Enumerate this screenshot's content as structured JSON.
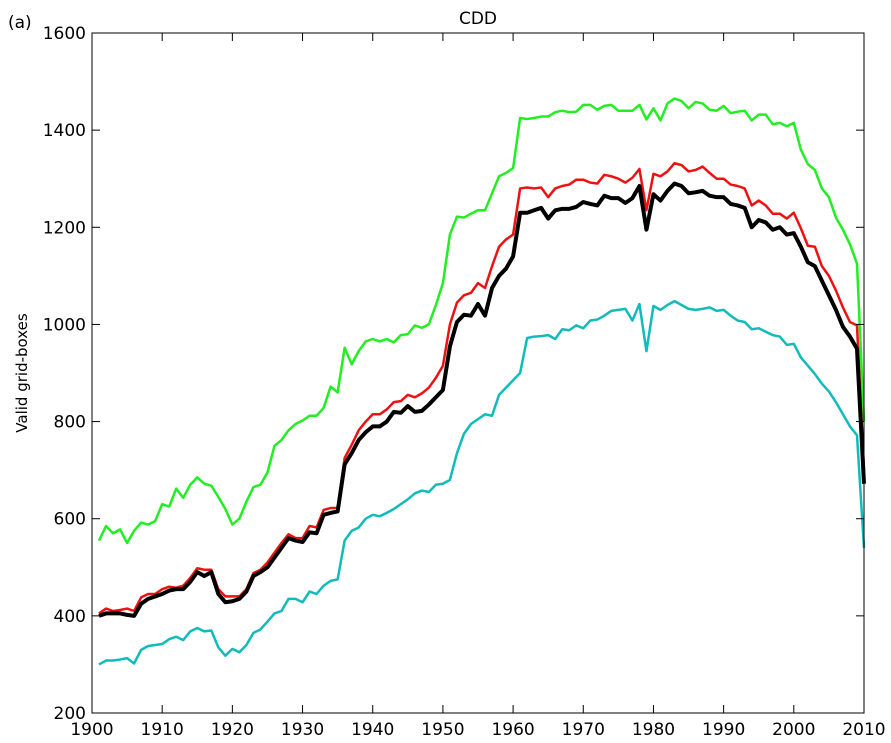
{
  "chart_data": {
    "type": "line",
    "panel_label": "(a)",
    "title": "CDD",
    "y_label": "Valid grid-boxes",
    "x": [
      1901,
      1902,
      1903,
      1904,
      1905,
      1906,
      1907,
      1908,
      1909,
      1910,
      1911,
      1912,
      1913,
      1914,
      1915,
      1916,
      1917,
      1918,
      1919,
      1920,
      1921,
      1922,
      1923,
      1924,
      1925,
      1926,
      1927,
      1928,
      1929,
      1930,
      1931,
      1932,
      1933,
      1934,
      1935,
      1936,
      1937,
      1938,
      1939,
      1940,
      1941,
      1942,
      1943,
      1944,
      1945,
      1946,
      1947,
      1948,
      1949,
      1950,
      1951,
      1952,
      1953,
      1954,
      1955,
      1956,
      1957,
      1958,
      1959,
      1960,
      1961,
      1962,
      1963,
      1964,
      1965,
      1966,
      1967,
      1968,
      1969,
      1970,
      1971,
      1972,
      1973,
      1974,
      1975,
      1976,
      1977,
      1978,
      1979,
      1980,
      1981,
      1982,
      1983,
      1984,
      1985,
      1986,
      1987,
      1988,
      1989,
      1990,
      1991,
      1992,
      1993,
      1994,
      1995,
      1996,
      1997,
      1998,
      1999,
      2000,
      2001,
      2002,
      2003,
      2004,
      2005,
      2006,
      2007,
      2008,
      2009,
      2010
    ],
    "series": [
      {
        "color": "#22ee22",
        "width": 2.5,
        "values": [
          555,
          585,
          570,
          578,
          550,
          575,
          592,
          588,
          595,
          630,
          625,
          662,
          643,
          670,
          685,
          672,
          668,
          645,
          620,
          588,
          600,
          635,
          665,
          670,
          695,
          750,
          762,
          782,
          795,
          802,
          812,
          812,
          828,
          872,
          860,
          952,
          918,
          945,
          965,
          970,
          965,
          970,
          963,
          978,
          980,
          998,
          993,
          1000,
          1040,
          1085,
          1185,
          1222,
          1220,
          1228,
          1235,
          1235,
          1270,
          1305,
          1312,
          1322,
          1425,
          1423,
          1425,
          1428,
          1428,
          1437,
          1440,
          1437,
          1438,
          1452,
          1452,
          1442,
          1450,
          1452,
          1440,
          1440,
          1440,
          1452,
          1422,
          1445,
          1420,
          1455,
          1465,
          1460,
          1445,
          1458,
          1455,
          1442,
          1440,
          1450,
          1435,
          1438,
          1440,
          1420,
          1432,
          1432,
          1412,
          1415,
          1408,
          1415,
          1360,
          1330,
          1318,
          1280,
          1262,
          1220,
          1195,
          1165,
          1125,
          800
        ]
      },
      {
        "color": "#11bbbb",
        "width": 2.5,
        "values": [
          300,
          308,
          308,
          310,
          313,
          302,
          330,
          338,
          340,
          342,
          352,
          357,
          350,
          368,
          375,
          368,
          370,
          335,
          318,
          332,
          325,
          340,
          365,
          372,
          388,
          405,
          410,
          435,
          435,
          428,
          450,
          445,
          462,
          472,
          475,
          555,
          575,
          582,
          600,
          608,
          605,
          612,
          620,
          630,
          640,
          652,
          658,
          655,
          670,
          672,
          680,
          735,
          775,
          795,
          805,
          815,
          812,
          855,
          870,
          885,
          900,
          972,
          975,
          976,
          978,
          970,
          990,
          988,
          998,
          992,
          1008,
          1010,
          1018,
          1028,
          1030,
          1032,
          1008,
          1042,
          945,
          1038,
          1030,
          1040,
          1048,
          1040,
          1032,
          1030,
          1032,
          1035,
          1028,
          1030,
          1018,
          1008,
          1005,
          990,
          992,
          985,
          978,
          975,
          958,
          960,
          932,
          915,
          898,
          878,
          862,
          840,
          815,
          790,
          772,
          540
        ]
      },
      {
        "color": "#ee1111",
        "width": 2.5,
        "values": [
          405,
          415,
          410,
          412,
          415,
          410,
          438,
          445,
          445,
          455,
          460,
          458,
          462,
          478,
          498,
          495,
          495,
          455,
          440,
          440,
          440,
          455,
          488,
          495,
          510,
          530,
          550,
          568,
          560,
          560,
          585,
          582,
          618,
          622,
          622,
          725,
          752,
          782,
          800,
          815,
          815,
          825,
          840,
          842,
          855,
          850,
          858,
          870,
          890,
          915,
          1000,
          1045,
          1060,
          1065,
          1085,
          1075,
          1120,
          1160,
          1175,
          1185,
          1280,
          1282,
          1280,
          1282,
          1262,
          1280,
          1285,
          1288,
          1298,
          1298,
          1292,
          1290,
          1308,
          1305,
          1300,
          1292,
          1302,
          1320,
          1235,
          1310,
          1305,
          1315,
          1332,
          1328,
          1315,
          1318,
          1325,
          1312,
          1300,
          1300,
          1288,
          1285,
          1280,
          1245,
          1255,
          1245,
          1228,
          1228,
          1218,
          1230,
          1198,
          1162,
          1160,
          1120,
          1100,
          1070,
          1035,
          1005,
          998,
          700
        ]
      },
      {
        "color": "#000000",
        "width": 4,
        "values": [
          400,
          405,
          405,
          405,
          402,
          400,
          425,
          435,
          440,
          445,
          452,
          455,
          455,
          470,
          490,
          482,
          490,
          445,
          428,
          430,
          435,
          450,
          482,
          490,
          500,
          520,
          540,
          560,
          555,
          552,
          572,
          570,
          608,
          612,
          615,
          712,
          735,
          762,
          778,
          790,
          790,
          800,
          820,
          818,
          832,
          820,
          822,
          835,
          850,
          865,
          955,
          1005,
          1020,
          1018,
          1042,
          1018,
          1075,
          1100,
          1115,
          1140,
          1230,
          1230,
          1235,
          1240,
          1218,
          1235,
          1238,
          1238,
          1242,
          1252,
          1248,
          1245,
          1265,
          1260,
          1260,
          1250,
          1260,
          1285,
          1195,
          1268,
          1255,
          1275,
          1290,
          1285,
          1270,
          1272,
          1275,
          1265,
          1262,
          1262,
          1248,
          1245,
          1240,
          1200,
          1215,
          1210,
          1195,
          1200,
          1185,
          1188,
          1160,
          1128,
          1120,
          1090,
          1060,
          1030,
          995,
          975,
          950,
          672
        ]
      }
    ],
    "xlim": [
      1900,
      2010
    ],
    "xticks": [
      1900,
      1910,
      1920,
      1930,
      1940,
      1950,
      1960,
      1970,
      1980,
      1990,
      2000,
      2010
    ],
    "ylim": [
      200,
      1600
    ],
    "yticks": [
      200,
      400,
      600,
      800,
      1000,
      1200,
      1400,
      1600
    ]
  }
}
